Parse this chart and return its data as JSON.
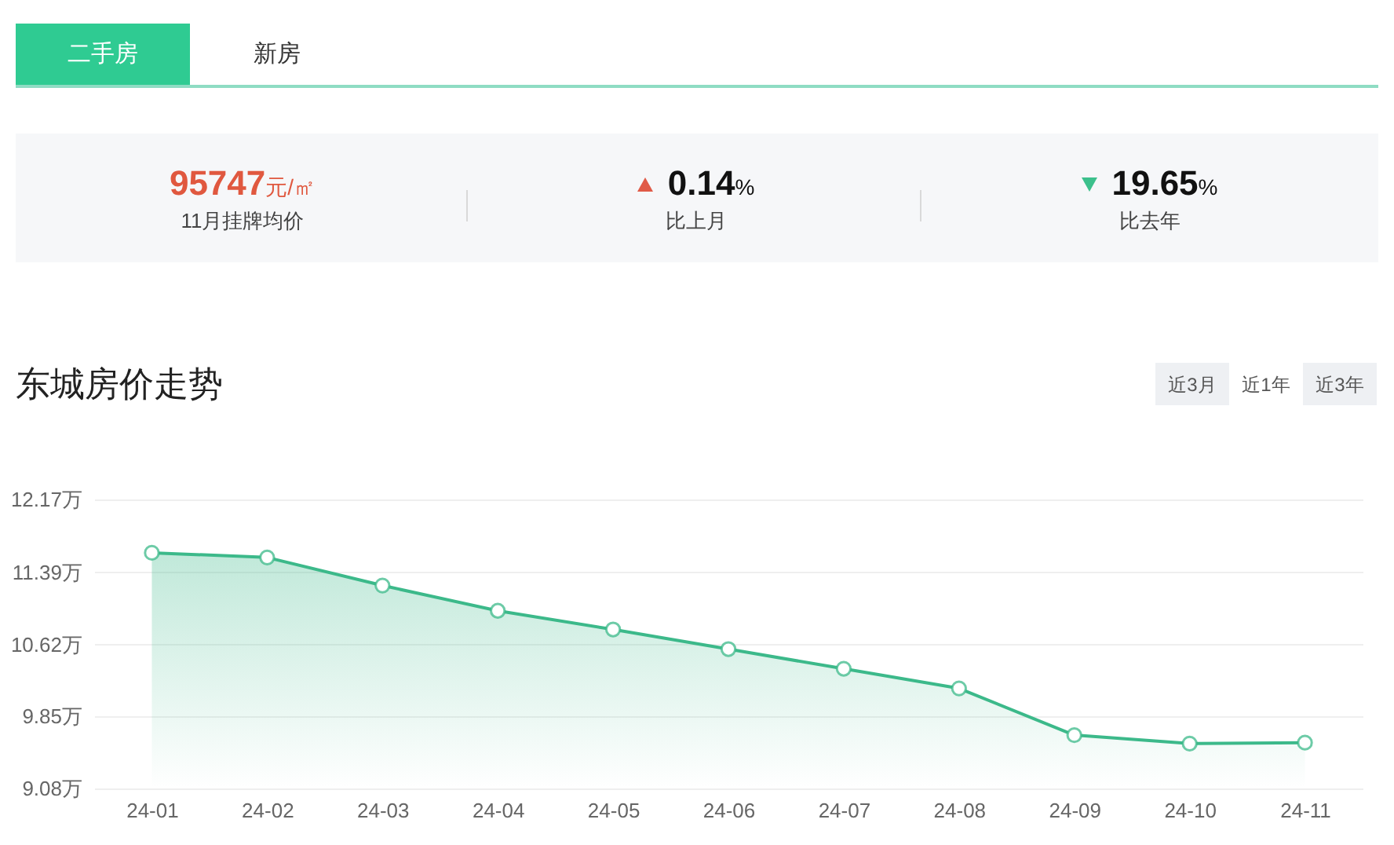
{
  "chart_data": [
    {
      "type": "other",
      "annotations": [
        "二手房",
        "新房",
        "95747元/㎡",
        "11月挂牌均价",
        "0.14%",
        "比上月",
        "19.65%",
        "比去年"
      ]
    },
    {
      "type": "area",
      "title": "东城房价走势",
      "annotations": [
        "近3月",
        "近1年",
        "近3年"
      ],
      "categories": [
        "24-01",
        "24-02",
        "24-03",
        "24-04",
        "24-05",
        "24-06",
        "24-07",
        "24-08",
        "24-09",
        "24-10",
        "24-11"
      ],
      "values": [
        11.6,
        11.55,
        11.25,
        10.98,
        10.78,
        10.57,
        10.36,
        10.15,
        9.65,
        9.56,
        9.57
      ],
      "color": "#3cb98a",
      "ylim": [
        9.08,
        12.17
      ],
      "yticks": [
        {
          "value": 9.08,
          "label": "9.08万"
        },
        {
          "value": 9.85,
          "label": "9.85万"
        },
        {
          "value": 10.62,
          "label": "10.62万"
        },
        {
          "value": 11.39,
          "label": "11.39万"
        },
        {
          "value": 12.17,
          "label": "12.17万"
        }
      ],
      "grid": "y",
      "marker": "circle"
    }
  ]
}
